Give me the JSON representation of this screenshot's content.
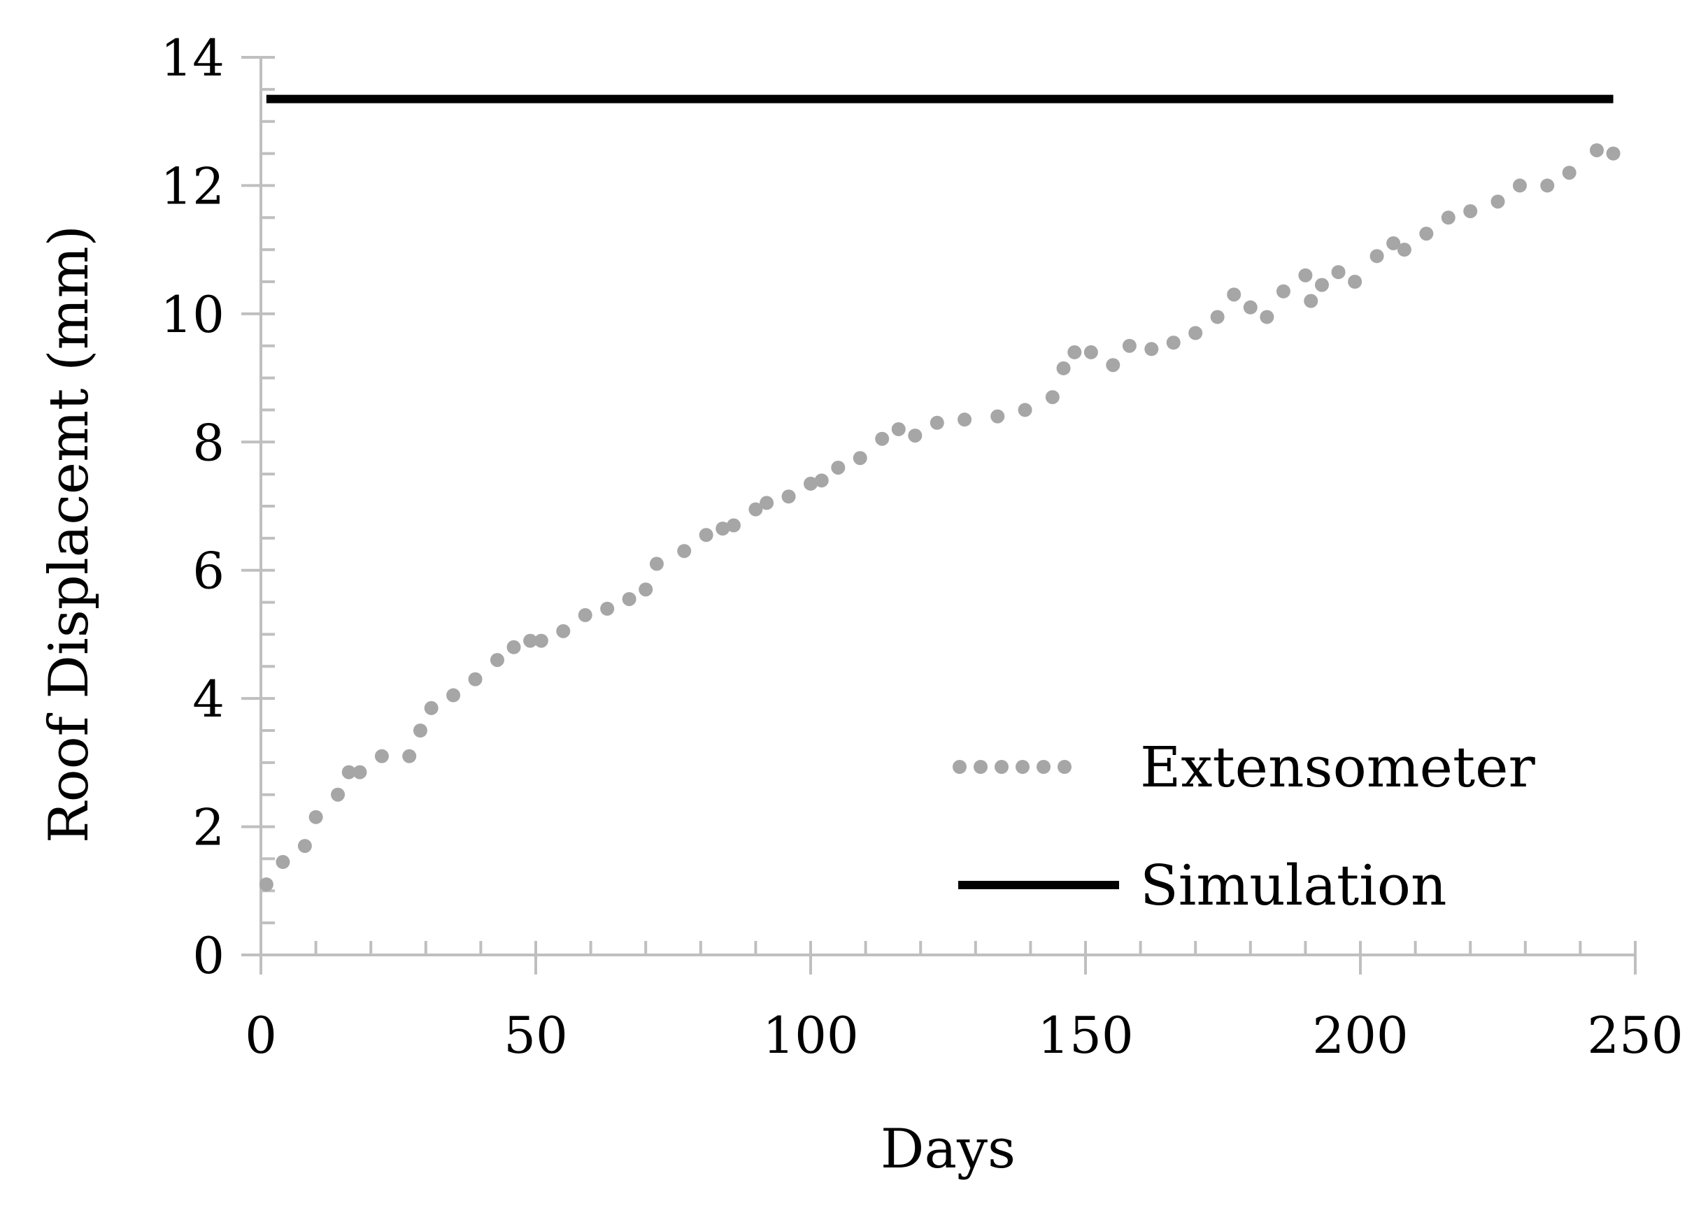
{
  "chart_data": {
    "type": "line",
    "title": "",
    "xlabel": "Days",
    "ylabel": "Roof Displacemt (mm)",
    "xlim": [
      0,
      250
    ],
    "ylim": [
      0,
      14
    ],
    "x_ticks": [
      0,
      50,
      100,
      150,
      200,
      250
    ],
    "y_ticks": [
      0,
      2,
      4,
      6,
      8,
      10,
      12,
      14
    ],
    "x_tick_labels": [
      "0",
      "50",
      "100",
      "150",
      "200",
      "250"
    ],
    "y_tick_labels": [
      "0",
      "2",
      "4",
      "6",
      "8",
      "10",
      "12",
      "14"
    ],
    "x_minor_step": 10,
    "y_minor_step": 0.5,
    "grid": false,
    "legend_position": "bottom-right",
    "series": [
      {
        "name": "Extensometer",
        "style": "dotted",
        "color": "#A6A6A6",
        "x": [
          1,
          4,
          8,
          10,
          14,
          16,
          18,
          22,
          27,
          29,
          31,
          35,
          39,
          43,
          46,
          49,
          51,
          55,
          59,
          63,
          67,
          70,
          72,
          77,
          81,
          84,
          86,
          90,
          92,
          96,
          100,
          102,
          105,
          109,
          113,
          116,
          119,
          123,
          128,
          134,
          139,
          144,
          146,
          148,
          151,
          155,
          158,
          162,
          166,
          170,
          174,
          177,
          180,
          183,
          186,
          190,
          191,
          193,
          196,
          199,
          203,
          206,
          208,
          212,
          216,
          220,
          225,
          229,
          234,
          238,
          243,
          246
        ],
        "values": [
          1.1,
          1.45,
          1.7,
          2.15,
          2.5,
          2.85,
          2.85,
          3.1,
          3.1,
          3.5,
          3.85,
          4.05,
          4.3,
          4.6,
          4.8,
          4.9,
          4.9,
          5.05,
          5.3,
          5.4,
          5.55,
          5.7,
          6.1,
          6.3,
          6.55,
          6.65,
          6.7,
          6.95,
          7.05,
          7.15,
          7.35,
          7.4,
          7.6,
          7.75,
          8.05,
          8.2,
          8.1,
          8.3,
          8.35,
          8.4,
          8.5,
          8.7,
          9.15,
          9.4,
          9.4,
          9.2,
          9.5,
          9.45,
          9.55,
          9.7,
          9.95,
          10.3,
          10.1,
          9.95,
          10.35,
          10.6,
          10.2,
          10.45,
          10.65,
          10.5,
          10.9,
          11.1,
          11.0,
          11.25,
          11.5,
          11.6,
          11.75,
          12.0,
          12.0,
          12.2,
          12.55,
          12.5
        ]
      },
      {
        "name": "Simulation",
        "style": "solid",
        "color": "#000000",
        "x": [
          1,
          246
        ],
        "values": [
          13.35,
          13.35
        ]
      }
    ]
  },
  "colors": {
    "axis": "#BFBFBF",
    "extensometer": "#A6A6A6",
    "simulation": "#000000",
    "text": "#000000",
    "background": "#FFFFFF"
  }
}
